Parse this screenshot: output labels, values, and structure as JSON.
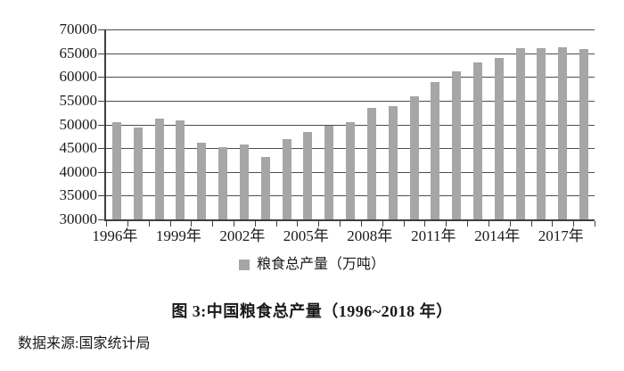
{
  "chart_data": {
    "type": "bar",
    "title": "图 3:中国粮食总产量（1996~2018 年）",
    "source": "数据来源:国家统计局",
    "legend": "粮食总产量（万吨）",
    "unit": "万吨",
    "categories": [
      "1996年",
      "1997年",
      "1998年",
      "1999年",
      "2000年",
      "2001年",
      "2002年",
      "2003年",
      "2004年",
      "2005年",
      "2006年",
      "2007年",
      "2008年",
      "2009年",
      "2010年",
      "2011年",
      "2012年",
      "2013年",
      "2014年",
      "2015年",
      "2016年",
      "2017年",
      "2018年"
    ],
    "values": [
      50454,
      49417,
      51230,
      50839,
      46218,
      45264,
      45706,
      43070,
      46947,
      48402,
      49804,
      50414,
      53434,
      53941,
      55911,
      58849,
      61223,
      63048,
      63965,
      66060,
      66044,
      66161,
      65789
    ],
    "ylim": [
      30000,
      70000
    ],
    "y_ticks": [
      30000,
      35000,
      40000,
      45000,
      50000,
      55000,
      60000,
      65000,
      70000
    ],
    "x_label_every": 3,
    "x_tick_labels_shown": [
      "1996年",
      "1999年",
      "2002年",
      "2005年",
      "2008年",
      "2011年",
      "2014年",
      "2017年"
    ],
    "grid": "horizontal",
    "legend_position": "bottom-center",
    "bar_color": "#a6a6a6",
    "grid_color": "#4d4d4d",
    "axis_color": "#3f3f3f"
  }
}
